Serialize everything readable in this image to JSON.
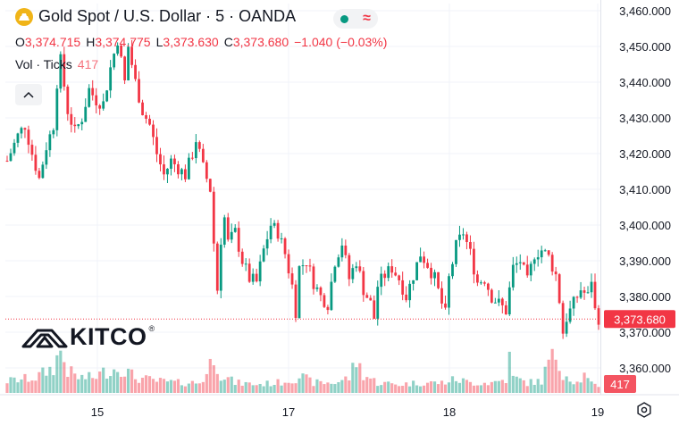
{
  "header": {
    "symbol_title": "Gold Spot / U.S. Dollar · 5 · OANDA",
    "market_dot_color": "#089981",
    "wave_glyph": "≈"
  },
  "ohlc": {
    "open_label": "O",
    "open": "3,374.715",
    "high_label": "H",
    "high": "3,374.775",
    "low_label": "L",
    "low": "3,373.630",
    "close_label": "C",
    "close": "3,373.680",
    "change": "−1.040 (−0.03%)"
  },
  "volume_legend": {
    "label": "Vol · Ticks",
    "value": "417"
  },
  "logo": {
    "text": "KITCO",
    "mark": "®"
  },
  "colors": {
    "up": "#089981",
    "down": "#f23645",
    "axis_text": "#131722",
    "grid": "#f0f3fa"
  },
  "chart_data": {
    "type": "candlestick",
    "y_axis": {
      "range": [
        3353,
        3462
      ],
      "ticks": [
        "3,460.000",
        "3,450.000",
        "3,440.000",
        "3,430.000",
        "3,420.000",
        "3,410.000",
        "3,400.000",
        "3,390.000",
        "3,380.000",
        "3,370.000",
        "3,360.000"
      ]
    },
    "x_axis": {
      "ticks": [
        "15",
        "17",
        "18",
        "19"
      ]
    },
    "last_price_label": "3,373.680",
    "last_volume_label": "417",
    "price_path": [
      [
        0,
        3418
      ],
      [
        3,
        3425
      ],
      [
        5,
        3428
      ],
      [
        7,
        3420
      ],
      [
        9,
        3413
      ],
      [
        11,
        3422
      ],
      [
        13,
        3428
      ],
      [
        14,
        3440
      ],
      [
        15,
        3446
      ],
      [
        17,
        3432
      ],
      [
        19,
        3426
      ],
      [
        21,
        3430
      ],
      [
        23,
        3438
      ],
      [
        25,
        3435
      ],
      [
        27,
        3434
      ],
      [
        29,
        3444
      ],
      [
        31,
        3452
      ],
      [
        32,
        3446
      ],
      [
        33,
        3440
      ],
      [
        34,
        3450
      ],
      [
        35,
        3445
      ],
      [
        36,
        3440
      ],
      [
        38,
        3432
      ],
      [
        40,
        3428
      ],
      [
        42,
        3420
      ],
      [
        44,
        3414
      ],
      [
        46,
        3418
      ],
      [
        48,
        3416
      ],
      [
        50,
        3414
      ],
      [
        52,
        3420
      ],
      [
        53,
        3424
      ],
      [
        55,
        3416
      ],
      [
        57,
        3410
      ],
      [
        58,
        3395
      ],
      [
        59,
        3382
      ],
      [
        60,
        3396
      ],
      [
        61,
        3402
      ],
      [
        62,
        3395
      ],
      [
        64,
        3398
      ],
      [
        66,
        3390
      ],
      [
        68,
        3385
      ],
      [
        70,
        3384
      ],
      [
        72,
        3393
      ],
      [
        74,
        3400
      ],
      [
        76,
        3398
      ],
      [
        78,
        3392
      ],
      [
        80,
        3383
      ],
      [
        81,
        3376
      ],
      [
        82,
        3388
      ],
      [
        84,
        3390
      ],
      [
        86,
        3384
      ],
      [
        88,
        3380
      ],
      [
        90,
        3378
      ],
      [
        92,
        3390
      ],
      [
        94,
        3395
      ],
      [
        96,
        3385
      ],
      [
        98,
        3390
      ],
      [
        100,
        3382
      ],
      [
        102,
        3378
      ],
      [
        103,
        3374
      ],
      [
        104,
        3383
      ],
      [
        106,
        3386
      ],
      [
        108,
        3388
      ],
      [
        110,
        3385
      ],
      [
        112,
        3380
      ],
      [
        114,
        3386
      ],
      [
        116,
        3392
      ],
      [
        118,
        3389
      ],
      [
        120,
        3385
      ],
      [
        122,
        3378
      ],
      [
        123,
        3375
      ],
      [
        124,
        3385
      ],
      [
        126,
        3394
      ],
      [
        128,
        3398
      ],
      [
        130,
        3392
      ],
      [
        132,
        3384
      ],
      [
        134,
        3385
      ],
      [
        136,
        3380
      ],
      [
        138,
        3378
      ],
      [
        140,
        3376
      ],
      [
        142,
        3388
      ],
      [
        144,
        3390
      ],
      [
        146,
        3384
      ],
      [
        148,
        3392
      ],
      [
        150,
        3393
      ],
      [
        152,
        3391
      ],
      [
        154,
        3386
      ],
      [
        155,
        3379
      ],
      [
        156,
        3370
      ],
      [
        157,
        3374
      ],
      [
        159,
        3378
      ],
      [
        161,
        3382
      ],
      [
        163,
        3380
      ],
      [
        164,
        3385
      ],
      [
        165,
        3376
      ],
      [
        166,
        3374
      ]
    ],
    "volume_profile": [
      [
        0,
        14
      ],
      [
        8,
        18
      ],
      [
        13,
        30
      ],
      [
        15,
        50
      ],
      [
        17,
        26
      ],
      [
        20,
        18
      ],
      [
        24,
        18
      ],
      [
        28,
        26
      ],
      [
        32,
        30
      ],
      [
        36,
        18
      ],
      [
        42,
        14
      ],
      [
        48,
        12
      ],
      [
        54,
        12
      ],
      [
        56,
        22
      ],
      [
        58,
        46
      ],
      [
        60,
        22
      ],
      [
        64,
        12
      ],
      [
        70,
        10
      ],
      [
        76,
        12
      ],
      [
        80,
        16
      ],
      [
        82,
        20
      ],
      [
        86,
        12
      ],
      [
        92,
        12
      ],
      [
        96,
        18
      ],
      [
        98,
        38
      ],
      [
        100,
        22
      ],
      [
        104,
        12
      ],
      [
        110,
        10
      ],
      [
        116,
        12
      ],
      [
        122,
        12
      ],
      [
        126,
        16
      ],
      [
        130,
        12
      ],
      [
        136,
        12
      ],
      [
        140,
        16
      ],
      [
        141,
        40
      ],
      [
        142,
        18
      ],
      [
        146,
        12
      ],
      [
        150,
        14
      ],
      [
        152,
        36
      ],
      [
        154,
        44
      ],
      [
        156,
        24
      ],
      [
        160,
        12
      ],
      [
        162,
        20
      ],
      [
        164,
        10
      ],
      [
        166,
        8
      ]
    ]
  }
}
